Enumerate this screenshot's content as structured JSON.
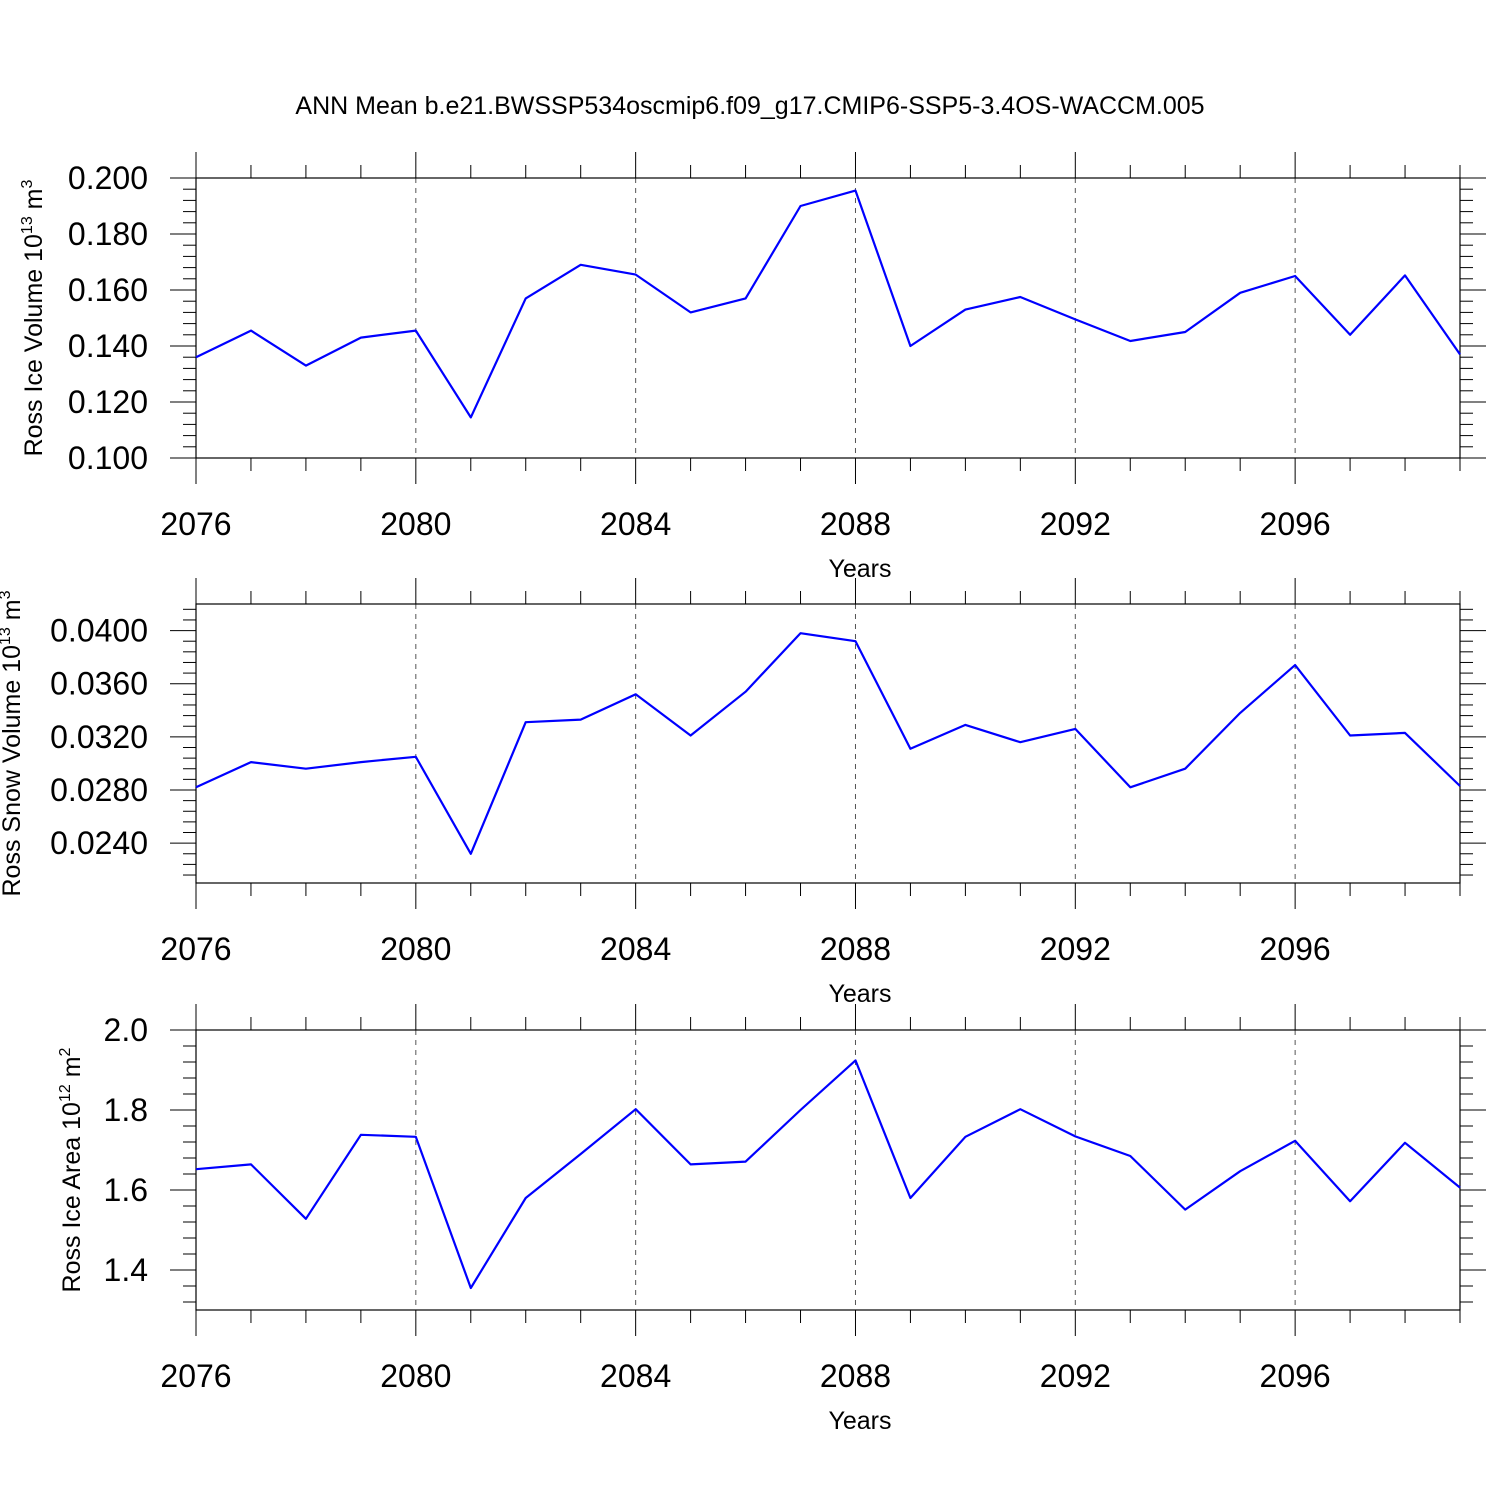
{
  "title": "ANN Mean b.e21.BWSSP534oscmip6.f09_g17.CMIP6-SSP5-3.4OS-WACCM.005",
  "colors": {
    "line": "#0000ff",
    "axis": "#000000",
    "grid": "#555555"
  },
  "chart_data": [
    {
      "type": "line",
      "ylabel": {
        "prefix": "Ross Ice Volume 10",
        "exp": "13",
        "unit": " m",
        "unit_exp": "3"
      },
      "xlabel": "Years",
      "xlim": [
        2076,
        2099
      ],
      "ylim": [
        0.1,
        0.2
      ],
      "yticks": [
        0.1,
        0.12,
        0.14,
        0.16,
        0.18,
        0.2
      ],
      "ytick_labels": [
        "0.100",
        "0.120",
        "0.140",
        "0.160",
        "0.180",
        "0.200"
      ],
      "xticks": [
        2076,
        2080,
        2084,
        2088,
        2092,
        2096
      ],
      "xtick_labels": [
        "2076",
        "2080",
        "2084",
        "2088",
        "2092",
        "2096"
      ],
      "x": [
        2076,
        2077,
        2078,
        2079,
        2080,
        2081,
        2082,
        2083,
        2084,
        2085,
        2086,
        2087,
        2088,
        2089,
        2090,
        2091,
        2092,
        2093,
        2094,
        2095,
        2096,
        2097,
        2098,
        2099
      ],
      "values": [
        0.136,
        0.1455,
        0.133,
        0.143,
        0.1455,
        0.1145,
        0.157,
        0.169,
        0.1655,
        0.152,
        0.157,
        0.19,
        0.1955,
        0.14,
        0.153,
        0.1575,
        0.1495,
        0.1418,
        0.145,
        0.159,
        0.165,
        0.144,
        0.1652,
        0.137
      ]
    },
    {
      "type": "line",
      "ylabel": {
        "prefix": "Ross Snow Volume 10",
        "exp": "13",
        "unit": " m",
        "unit_exp": "3"
      },
      "xlabel": "Years",
      "xlim": [
        2076,
        2099
      ],
      "ylim": [
        0.021,
        0.042
      ],
      "yticks": [
        0.024,
        0.028,
        0.032,
        0.036,
        0.04
      ],
      "ytick_labels": [
        "0.0240",
        "0.0280",
        "0.0320",
        "0.0360",
        "0.0400"
      ],
      "xticks": [
        2076,
        2080,
        2084,
        2088,
        2092,
        2096
      ],
      "xtick_labels": [
        "2076",
        "2080",
        "2084",
        "2088",
        "2092",
        "2096"
      ],
      "x": [
        2076,
        2077,
        2078,
        2079,
        2080,
        2081,
        2082,
        2083,
        2084,
        2085,
        2086,
        2087,
        2088,
        2089,
        2090,
        2091,
        2092,
        2093,
        2094,
        2095,
        2096,
        2097,
        2098,
        2099
      ],
      "values": [
        0.0282,
        0.0301,
        0.0296,
        0.0301,
        0.0305,
        0.0232,
        0.0331,
        0.0333,
        0.0352,
        0.0321,
        0.0354,
        0.0398,
        0.0392,
        0.0311,
        0.0329,
        0.0316,
        0.0326,
        0.0282,
        0.0296,
        0.0338,
        0.0374,
        0.0321,
        0.0323,
        0.0283
      ]
    },
    {
      "type": "line",
      "ylabel": {
        "prefix": "Ross Ice Area 10",
        "exp": "12",
        "unit": " m",
        "unit_exp": "2"
      },
      "xlabel": "Years",
      "xlim": [
        2076,
        2099
      ],
      "ylim": [
        1.3,
        2.0
      ],
      "yticks": [
        1.4,
        1.6,
        1.8,
        2.0
      ],
      "ytick_labels": [
        "1.4",
        "1.6",
        "1.8",
        "2.0"
      ],
      "xticks": [
        2076,
        2080,
        2084,
        2088,
        2092,
        2096
      ],
      "xtick_labels": [
        "2076",
        "2080",
        "2084",
        "2088",
        "2092",
        "2096"
      ],
      "x": [
        2076,
        2077,
        2078,
        2079,
        2080,
        2081,
        2082,
        2083,
        2084,
        2085,
        2086,
        2087,
        2088,
        2089,
        2090,
        2091,
        2092,
        2093,
        2094,
        2095,
        2096,
        2097,
        2098,
        2099
      ],
      "values": [
        1.652,
        1.664,
        1.528,
        1.738,
        1.733,
        1.355,
        1.58,
        1.69,
        1.802,
        1.664,
        1.671,
        1.8,
        1.924,
        1.58,
        1.733,
        1.802,
        1.734,
        1.685,
        1.551,
        1.647,
        1.723,
        1.572,
        1.718,
        1.606
      ]
    }
  ]
}
